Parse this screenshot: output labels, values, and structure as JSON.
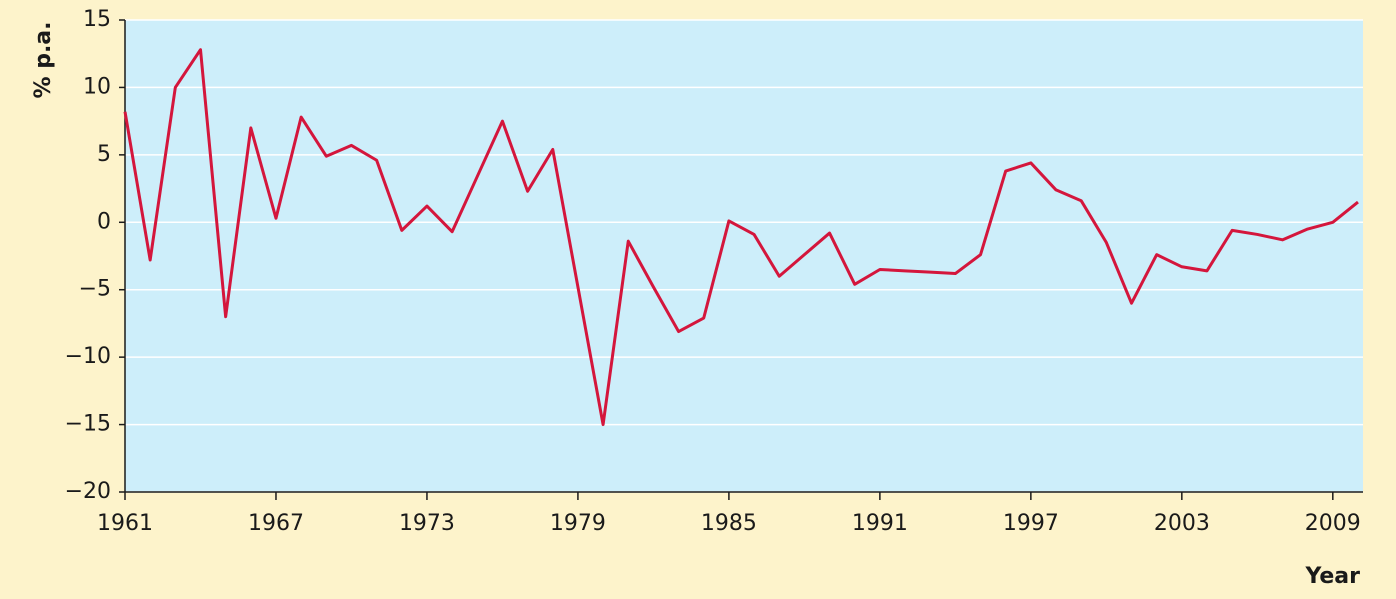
{
  "chart_data": {
    "type": "line",
    "x_label": "Year",
    "y_label": "% p.a.",
    "x": [
      1961,
      1962,
      1963,
      1964,
      1965,
      1966,
      1967,
      1968,
      1969,
      1970,
      1971,
      1972,
      1973,
      1974,
      1975,
      1976,
      1977,
      1978,
      1979,
      1980,
      1981,
      1982,
      1983,
      1984,
      1985,
      1986,
      1987,
      1988,
      1989,
      1990,
      1991,
      1992,
      1993,
      1994,
      1995,
      1996,
      1997,
      1998,
      1999,
      2000,
      2001,
      2002,
      2003,
      2004,
      2005,
      2006,
      2007,
      2008,
      2009,
      2010
    ],
    "series": [
      {
        "color": "#d4163c",
        "values": [
          8.2,
          -2.8,
          10,
          12.8,
          -7,
          7,
          0.3,
          7.8,
          4.9,
          5.7,
          4.6,
          -0.6,
          1.2,
          -0.7,
          3.4,
          7.5,
          2.3,
          5.4,
          -4.8,
          -15,
          -1.4,
          -4.8,
          -8.1,
          -7.1,
          0.1,
          -0.9,
          -4,
          -2.4,
          -0.8,
          -4.6,
          -3.5,
          -3.6,
          -3.7,
          -3.8,
          -2.4,
          3.8,
          4.4,
          2.4,
          1.6,
          -1.5,
          -6,
          -2.4,
          -3.3,
          -3.6,
          -0.6,
          -0.9,
          -1.3,
          -0.5,
          0,
          1.5
        ]
      }
    ],
    "xlim": [
      1961,
      2010.2
    ],
    "ylim": [
      -20,
      15
    ],
    "xticks": [
      1961,
      1967,
      1973,
      1979,
      1985,
      1991,
      1997,
      2003,
      2009
    ],
    "yticks": [
      {
        "value": -20,
        "label": "−20"
      },
      {
        "value": -15,
        "label": "−15"
      },
      {
        "value": -10,
        "label": "−10"
      },
      {
        "value": -5,
        "label": "−5"
      },
      0,
      5,
      10,
      15
    ],
    "grid": true,
    "plot_background": "#cdeefa"
  }
}
